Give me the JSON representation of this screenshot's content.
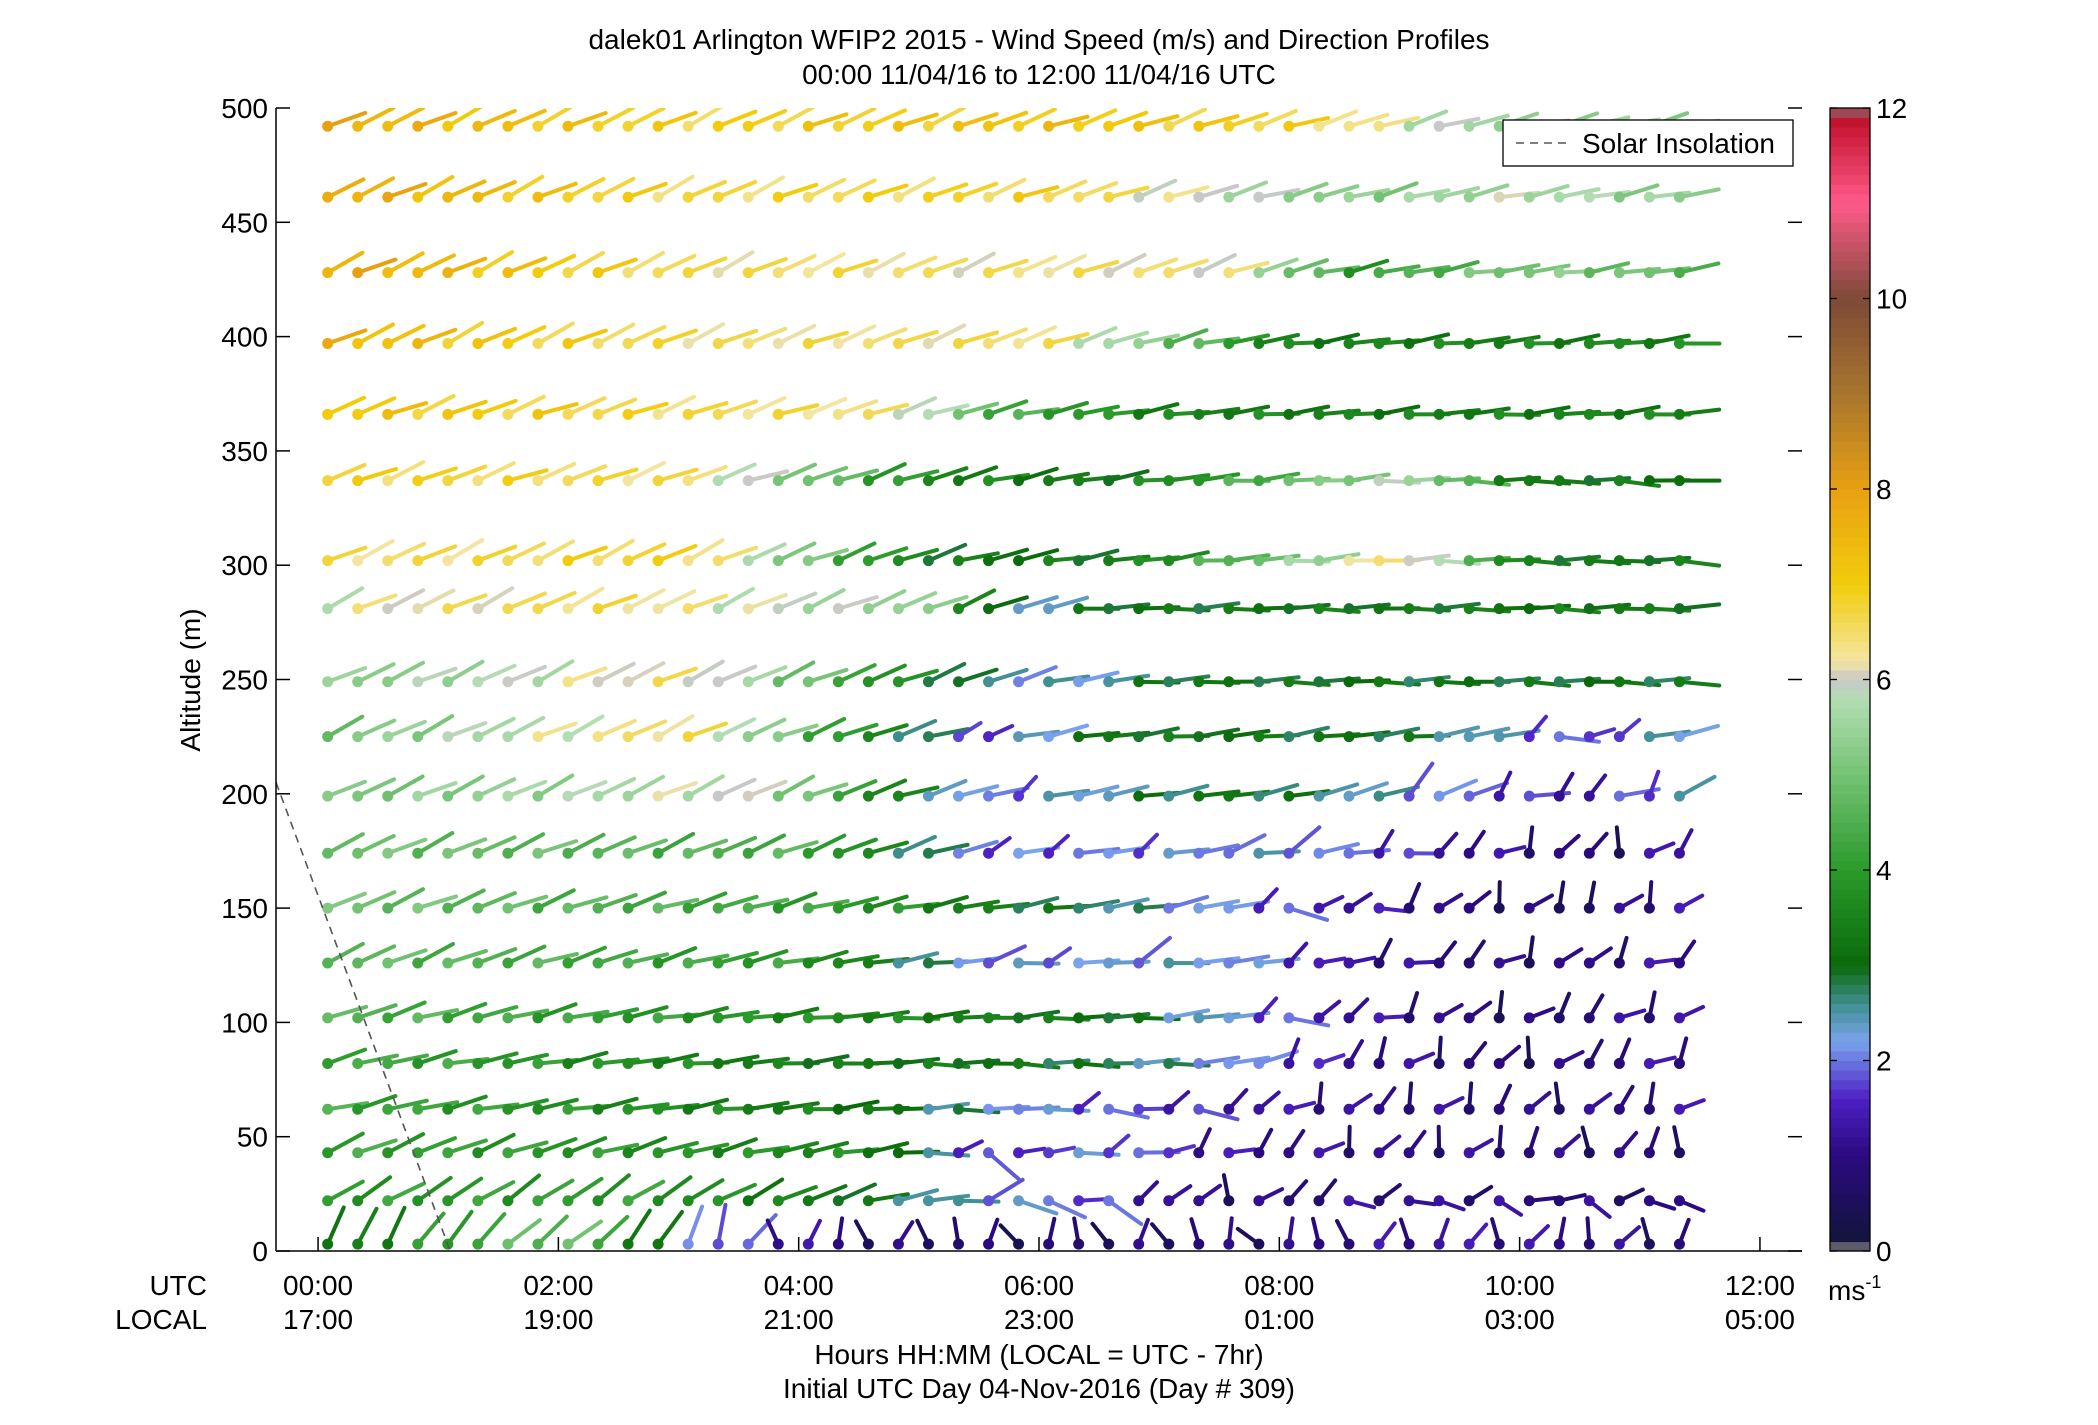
{
  "chart_data": {
    "type": "wind-barb-profile",
    "title": "dalek01 Arlington WFIP2 2015 - Wind Speed (m/s) and Direction Profiles",
    "subtitle": "00:00 11/04/16 to 12:00 11/04/16  UTC",
    "ylabel": "Altitude (m)",
    "xlabel_line1": "Hours HH:MM  (LOCAL = UTC - 7hr)",
    "xlabel_line2": "Initial UTC Day 04-Nov-2016 (Day # 309)",
    "ylim": [
      0,
      500
    ],
    "xlim_hours": [
      -0.35,
      12.35
    ],
    "y_ticks": [
      0,
      50,
      100,
      150,
      200,
      250,
      300,
      350,
      400,
      450,
      500
    ],
    "x_tick_hours": [
      0,
      2,
      4,
      6,
      8,
      10,
      12
    ],
    "utc_row_label": "UTC",
    "local_row_label": "LOCAL",
    "utc_tick_labels": [
      "00:00",
      "02:00",
      "04:00",
      "06:00",
      "08:00",
      "10:00",
      "12:00"
    ],
    "local_tick_labels": [
      "17:00",
      "19:00",
      "21:00",
      "23:00",
      "01:00",
      "03:00",
      "05:00"
    ],
    "colorbar": {
      "min": 0,
      "max": 12,
      "ticks": [
        0,
        2,
        4,
        6,
        8,
        10,
        12
      ],
      "tick_labels": [
        "0",
        "2",
        "4",
        "6",
        "8",
        "10",
        "12"
      ],
      "unit_base": "ms",
      "unit_exp": "-1",
      "stops": [
        {
          "v": 0.0,
          "c": "#7f7f7f"
        },
        {
          "v": 0.15,
          "c": "#141440"
        },
        {
          "v": 1.0,
          "c": "#2a0a80"
        },
        {
          "v": 1.6,
          "c": "#4d1fc4"
        },
        {
          "v": 2.2,
          "c": "#7aa3ee"
        },
        {
          "v": 2.6,
          "c": "#3f8f8f"
        },
        {
          "v": 3.0,
          "c": "#0a6a0a"
        },
        {
          "v": 4.0,
          "c": "#2a9a2a"
        },
        {
          "v": 5.0,
          "c": "#74c374"
        },
        {
          "v": 5.8,
          "c": "#b3ddb3"
        },
        {
          "v": 6.0,
          "c": "#c8c8c8"
        },
        {
          "v": 6.2,
          "c": "#f3e6a0"
        },
        {
          "v": 7.0,
          "c": "#f2cc0c"
        },
        {
          "v": 8.0,
          "c": "#e8a012"
        },
        {
          "v": 9.0,
          "c": "#a8752e"
        },
        {
          "v": 10.0,
          "c": "#7d4a37"
        },
        {
          "v": 11.0,
          "c": "#ff5a8a"
        },
        {
          "v": 11.9,
          "c": "#c0102a"
        },
        {
          "v": 12.0,
          "c": "#7f7f7f"
        }
      ]
    },
    "legend": {
      "label": "Solar Insolation",
      "style": "dashed",
      "color": "#555555",
      "placement": "top-right"
    },
    "solar_insolation": {
      "x": [
        -0.35,
        1.1
      ],
      "y": [
        205,
        0
      ]
    },
    "barbs": {
      "levels": [
        3,
        22,
        43,
        62,
        82,
        102,
        126,
        150,
        174,
        199,
        225,
        249,
        281,
        302,
        337,
        366,
        397,
        428,
        461,
        492
      ],
      "start_hour": 0.08,
      "step_hours": 0.25,
      "count": 46,
      "rows": {
        "3": {
          "dir": [
            [
              0,
              3,
              200
            ],
            [
              2,
              5,
              235
            ],
            [
              3.2,
              2,
              200
            ],
            [
              4.5,
              0.8,
              180
            ],
            [
              6,
              0.7,
              170
            ],
            [
              8,
              0.9,
              160
            ],
            [
              9.5,
              1.3,
              200
            ],
            [
              12.1,
              0.6,
              190
            ]
          ]
        },
        "22": {
          "dir": [
            [
              0,
              4,
              240
            ],
            [
              2.5,
              4,
              235
            ],
            [
              4.3,
              3.2,
              250
            ],
            [
              5.5,
              2.2,
              270
            ],
            [
              6.2,
              2,
              300
            ],
            [
              7.5,
              0.8,
              200
            ],
            [
              9,
              1.1,
              270
            ],
            [
              12.1,
              0.8,
              280
            ]
          ]
        },
        "43": {
          "dir": [
            [
              0,
              4.2,
              245
            ],
            [
              4.5,
              3.6,
              260
            ],
            [
              5.5,
              1.5,
              280
            ],
            [
              6.5,
              2.1,
              265
            ],
            [
              7.5,
              1.2,
              230
            ],
            [
              9,
              1,
              210
            ],
            [
              12.1,
              0.8,
              190
            ]
          ]
        },
        "62": {
          "dir": [
            [
              0,
              4.3,
              255
            ],
            [
              4.5,
              3.3,
              265
            ],
            [
              5.7,
              2.2,
              270
            ],
            [
              7,
              1.6,
              260
            ],
            [
              8.5,
              1.1,
              215
            ],
            [
              10,
              0.9,
              205
            ],
            [
              12.1,
              1.2,
              220
            ]
          ]
        },
        "82": {
          "dir": [
            [
              0,
              4.4,
              255
            ],
            [
              4,
              3.3,
              265
            ],
            [
              6,
              3.1,
              272
            ],
            [
              7.5,
              2.2,
              265
            ],
            [
              8.5,
              1.2,
              215
            ],
            [
              10,
              0.7,
              210
            ],
            [
              12.1,
              1.5,
              235
            ]
          ]
        },
        "102": {
          "dir": [
            [
              0,
              4.6,
              250
            ],
            [
              4.5,
              3.6,
              265
            ],
            [
              6.5,
              3.1,
              268
            ],
            [
              7.5,
              2.2,
              262
            ],
            [
              8.5,
              1.3,
              240
            ],
            [
              10,
              0.7,
              215
            ],
            [
              12.1,
              1.5,
              235
            ]
          ]
        },
        "126": {
          "dir": [
            [
              0,
              4.8,
              245
            ],
            [
              4,
              4,
              258
            ],
            [
              5.5,
              2,
              265
            ],
            [
              7.5,
              2.3,
              265
            ],
            [
              8.5,
              1.2,
              245
            ],
            [
              10,
              0.8,
              220
            ],
            [
              12.1,
              1.4,
              238
            ]
          ]
        },
        "150": {
          "dir": [
            [
              0,
              5,
              245
            ],
            [
              4,
              4.2,
              255
            ],
            [
              6,
              3,
              262
            ],
            [
              8.5,
              1.4,
              255
            ],
            [
              9.5,
              0.9,
              220
            ],
            [
              10.5,
              0.6,
              200
            ],
            [
              12.1,
              2,
              248
            ]
          ]
        },
        "174": {
          "dir": [
            [
              0,
              5,
              245
            ],
            [
              4,
              4.4,
              248
            ],
            [
              5.5,
              1.8,
              255
            ],
            [
              8,
              2.2,
              262
            ],
            [
              9.5,
              1.2,
              230
            ],
            [
              10.8,
              0.7,
              205
            ],
            [
              12.1,
              2.4,
              250
            ]
          ]
        },
        "199": {
          "dir": [
            [
              0,
              5,
              245
            ],
            [
              3.5,
              6,
              245
            ],
            [
              5.5,
              1.8,
              255
            ],
            [
              7.5,
              3.2,
              262
            ],
            [
              9,
              2.2,
              250
            ],
            [
              10.5,
              1.2,
              225
            ],
            [
              12.1,
              3.4,
              250
            ]
          ]
        },
        "225": {
          "dir": [
            [
              0,
              5,
              245
            ],
            [
              3,
              6.6,
              245
            ],
            [
              5.5,
              1.6,
              255
            ],
            [
              6.5,
              3.2,
              263
            ],
            [
              9,
              3,
              263
            ],
            [
              10.5,
              1.6,
              252
            ],
            [
              12.1,
              3.3,
              265
            ]
          ]
        },
        "249": {
          "dir": [
            [
              0,
              5.2,
              245
            ],
            [
              3,
              6.4,
              245
            ],
            [
              5.5,
              2.5,
              250
            ],
            [
              6.2,
              2.2,
              258
            ],
            [
              7,
              3.1,
              268
            ],
            [
              10.5,
              3,
              270
            ],
            [
              12.1,
              3.2,
              272
            ]
          ]
        },
        "281": {
          "dir": [
            [
              0,
              6.0,
              245
            ],
            [
              2,
              6.6,
              245
            ],
            [
              5,
              5.4,
              248
            ],
            [
              5.7,
              2.2,
              250
            ],
            [
              6.5,
              3.1,
              268
            ],
            [
              12.1,
              3.3,
              270
            ]
          ]
        },
        "302": {
          "dir": [
            [
              0,
              6.4,
              245
            ],
            [
              3,
              6.8,
              245
            ],
            [
              5,
              3.2,
              252
            ],
            [
              6.5,
              3.2,
              262
            ],
            [
              9,
              6.6,
              268
            ],
            [
              10,
              3.2,
              270
            ],
            [
              12.1,
              3.2,
              272
            ]
          ]
        },
        "337": {
          "dir": [
            [
              0,
              6.8,
              248
            ],
            [
              3,
              6.5,
              250
            ],
            [
              5,
              3.6,
              252
            ],
            [
              6.5,
              3.2,
              262
            ],
            [
              9,
              5.8,
              268
            ],
            [
              10,
              3.2,
              272
            ],
            [
              12.1,
              3.2,
              272
            ]
          ]
        },
        "366": {
          "dir": [
            [
              0,
              7.2,
              248
            ],
            [
              3,
              6.6,
              250
            ],
            [
              4.8,
              6.3,
              252
            ],
            [
              5.5,
              4.5,
              255
            ],
            [
              7,
              3.5,
              262
            ],
            [
              9,
              3.4,
              265
            ],
            [
              12.1,
              3.5,
              265
            ]
          ]
        },
        "397": {
          "dir": [
            [
              0,
              7.5,
              245
            ],
            [
              2,
              6.8,
              245
            ],
            [
              3.5,
              6.4,
              248
            ],
            [
              6,
              6.5,
              250
            ],
            [
              8,
              3.4,
              262
            ],
            [
              12.1,
              3.6,
              265
            ]
          ]
        },
        "428": {
          "dir": [
            [
              0,
              7.8,
              245
            ],
            [
              3,
              6.5,
              245
            ],
            [
              7.5,
              6.3,
              250
            ],
            [
              8.5,
              4,
              258
            ],
            [
              10,
              5.2,
              262
            ],
            [
              12.1,
              4.5,
              262
            ]
          ]
        },
        "461": {
          "dir": [
            [
              0,
              7.8,
              245
            ],
            [
              3,
              6.6,
              245
            ],
            [
              6,
              6.8,
              250
            ],
            [
              8.5,
              5.2,
              255
            ],
            [
              10,
              5.8,
              258
            ],
            [
              12.1,
              5,
              260
            ]
          ]
        },
        "492": {
          "dir": [
            [
              0,
              7.7,
              245
            ],
            [
              3,
              6.8,
              245
            ],
            [
              6,
              7.2,
              250
            ],
            [
              8,
              6.8,
              252
            ],
            [
              9.5,
              5.6,
              255
            ],
            [
              12.1,
              5.4,
              258
            ]
          ]
        }
      }
    }
  }
}
